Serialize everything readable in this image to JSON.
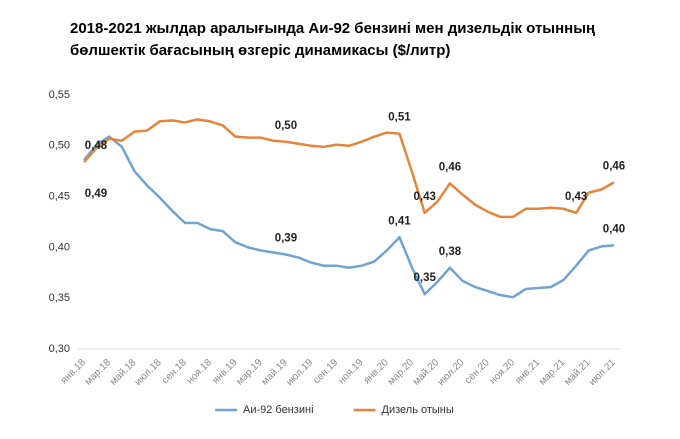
{
  "chart_data": {
    "type": "line",
    "title": "2018-2021 жылдар аралығында Аи-92 бензині мен дизельдік отынның бөлшектік бағасының өзгеріс динамикасы ($/литр)",
    "categories": [
      "янв.18",
      null,
      "мар.18",
      null,
      "май.18",
      null,
      "июл.18",
      null,
      "сен.18",
      null,
      "ноя.18",
      null,
      "янв.19",
      null,
      "мар.19",
      null,
      "май.19",
      null,
      "июл.19",
      null,
      "сен.19",
      null,
      "ноя.19",
      null,
      "янв.20",
      null,
      "мар.20",
      null,
      "май.20",
      null,
      "июл.20",
      null,
      "сен.20",
      null,
      "ноя.20",
      null,
      "янв.21",
      null,
      "мар.21",
      null,
      "май.21",
      null,
      "июл.21"
    ],
    "series": [
      {
        "name": "Аи-92 бензині",
        "color": "#6fa3d2",
        "values": [
          0.486,
          0.501,
          0.509,
          0.499,
          0.475,
          0.461,
          0.449,
          0.436,
          0.424,
          0.424,
          0.418,
          0.416,
          0.405,
          0.4,
          0.397,
          0.395,
          0.393,
          0.39,
          0.385,
          0.382,
          0.382,
          0.38,
          0.382,
          0.386,
          0.397,
          0.41,
          0.38,
          0.354,
          0.366,
          0.38,
          0.367,
          0.361,
          0.357,
          0.353,
          0.351,
          0.359,
          0.36,
          0.361,
          0.368,
          0.382,
          0.397,
          0.401,
          0.402
        ],
        "value_labels": [
          "0,49",
          null,
          null,
          null,
          null,
          null,
          null,
          null,
          null,
          null,
          null,
          null,
          null,
          null,
          null,
          null,
          "0,39",
          null,
          null,
          null,
          null,
          null,
          null,
          null,
          null,
          "0,41",
          null,
          "0,35",
          null,
          "0,38",
          null,
          null,
          null,
          null,
          null,
          null,
          null,
          null,
          null,
          null,
          null,
          null,
          "0,40"
        ]
      },
      {
        "name": "Дизель отыны",
        "color": "#e8843a",
        "values": [
          0.484,
          0.498,
          0.507,
          0.505,
          0.514,
          0.515,
          0.524,
          0.525,
          0.523,
          0.526,
          0.524,
          0.52,
          0.509,
          0.508,
          0.508,
          0.505,
          0.504,
          0.502,
          0.5,
          0.499,
          0.501,
          0.5,
          0.504,
          0.509,
          0.513,
          0.512,
          0.474,
          0.434,
          0.445,
          0.463,
          0.452,
          0.442,
          0.435,
          0.43,
          0.43,
          0.438,
          0.438,
          0.439,
          0.438,
          0.434,
          0.454,
          0.457,
          0.464
        ],
        "value_labels": [
          "0,48",
          null,
          null,
          null,
          null,
          null,
          null,
          null,
          null,
          null,
          null,
          null,
          null,
          null,
          null,
          null,
          "0,50",
          null,
          null,
          null,
          null,
          null,
          null,
          null,
          null,
          "0,51",
          null,
          "0,43",
          null,
          "0,46",
          null,
          null,
          null,
          null,
          null,
          null,
          null,
          null,
          null,
          "0,43",
          null,
          null,
          "0,46"
        ]
      }
    ],
    "ylim": [
      0.3,
      0.55
    ],
    "yticks": [
      {
        "value": 0.3,
        "label": "0,30"
      },
      {
        "value": 0.35,
        "label": "0,35"
      },
      {
        "value": 0.4,
        "label": "0,40"
      },
      {
        "value": 0.45,
        "label": "0,45"
      },
      {
        "value": 0.5,
        "label": "0,50"
      },
      {
        "value": 0.55,
        "label": "0,55"
      }
    ],
    "legend": "bottom"
  }
}
